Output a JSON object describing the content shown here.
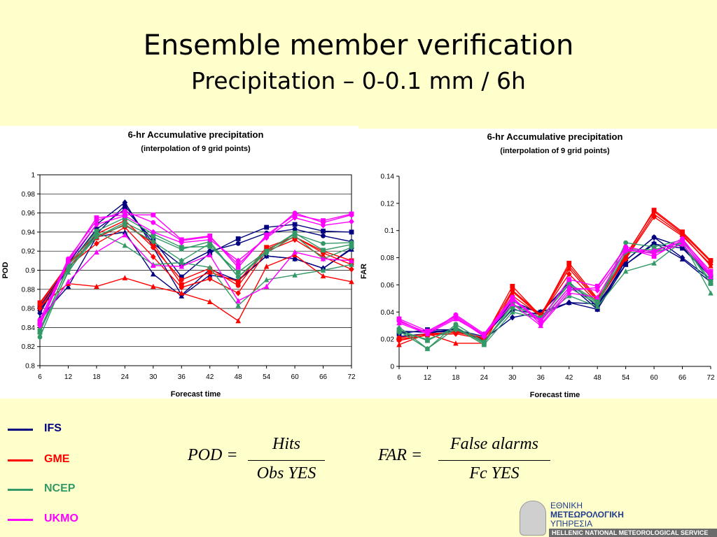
{
  "slide": {
    "title": "Ensemble member verification",
    "subtitle": "Precipitation – 0-0.1 mm / 6h"
  },
  "legend": [
    {
      "label": "IFS",
      "color": "#000080"
    },
    {
      "label": "GME",
      "color": "#ff0000"
    },
    {
      "label": "NCEP",
      "color": "#339966"
    },
    {
      "label": "UKMO",
      "color": "#ff00ff"
    }
  ],
  "formulas": {
    "pod": {
      "lhs": "POD =",
      "numerator": "Hits",
      "denominator": "Obs YES"
    },
    "far": {
      "lhs": "FAR =",
      "numerator": "False alarms",
      "denominator": "Fc YES"
    }
  },
  "logo": {
    "line1": "ΕΘΝΙΚΗ",
    "line2": "ΜΕΤΕΩΡΟΛΟΓΙΚΗ",
    "line3": "ΥΠΗΡΕΣΙΑ",
    "line4": "HELLENIC NATIONAL METEOROLOGICAL SERVICE"
  },
  "chart_data": [
    {
      "type": "line",
      "title": "6-hr Accumulative precipitation",
      "subtitle": "(interpolation of 9 grid points)",
      "xlabel": "Forecast time",
      "ylabel": "POD",
      "x": [
        6,
        12,
        18,
        24,
        30,
        36,
        42,
        48,
        54,
        60,
        66,
        72
      ],
      "ylim": [
        0.8,
        1.0
      ],
      "yticks": [
        "0.8",
        "0.82",
        "0.84",
        "0.86",
        "0.88",
        "0.9",
        "0.92",
        "0.94",
        "0.96",
        "0.98",
        "1"
      ],
      "grid": true,
      "series": [
        {
          "color": "#000080",
          "marker": "diamond",
          "values": [
            0.855,
            0.907,
            0.948,
            0.971,
            0.924,
            0.874,
            0.901,
            0.889,
            0.915,
            0.912,
            0.902,
            0.923
          ]
        },
        {
          "color": "#000080",
          "marker": "square",
          "values": [
            0.862,
            0.905,
            0.943,
            0.964,
            0.932,
            0.893,
            0.918,
            0.933,
            0.945,
            0.948,
            0.941,
            0.94
          ]
        },
        {
          "color": "#000080",
          "marker": "circle",
          "values": [
            0.858,
            0.902,
            0.938,
            0.968,
            0.928,
            0.905,
            0.92,
            0.928,
            0.939,
            0.943,
            0.936,
            0.93
          ]
        },
        {
          "color": "#000080",
          "marker": "triangle",
          "values": [
            0.85,
            0.883,
            0.935,
            0.94,
            0.896,
            0.873,
            0.895,
            0.89,
            0.915,
            0.912,
            0.902,
            0.922
          ]
        },
        {
          "color": "#ff0000",
          "marker": "triangle",
          "values": [
            0.862,
            0.886,
            0.883,
            0.892,
            0.883,
            0.876,
            0.867,
            0.847,
            0.904,
            0.916,
            0.894,
            0.888
          ]
        },
        {
          "color": "#ff0000",
          "marker": "square",
          "values": [
            0.866,
            0.906,
            0.934,
            0.948,
            0.928,
            0.885,
            0.898,
            0.888,
            0.924,
            0.935,
            0.92,
            0.91
          ]
        },
        {
          "color": "#ff0000",
          "marker": "diamond",
          "values": [
            0.86,
            0.904,
            0.928,
            0.945,
            0.914,
            0.882,
            0.891,
            0.876,
            0.92,
            0.932,
            0.914,
            0.901
          ]
        },
        {
          "color": "#ff0000",
          "marker": "circle",
          "values": [
            0.864,
            0.907,
            0.938,
            0.952,
            0.924,
            0.89,
            0.902,
            0.884,
            0.922,
            0.935,
            0.918,
            0.906
          ]
        },
        {
          "color": "#339966",
          "marker": "circle",
          "values": [
            0.83,
            0.9,
            0.935,
            0.95,
            0.935,
            0.922,
            0.93,
            0.893,
            0.92,
            0.938,
            0.928,
            0.929
          ]
        },
        {
          "color": "#339966",
          "marker": "triangle",
          "values": [
            0.836,
            0.898,
            0.94,
            0.926,
            0.906,
            0.908,
            0.903,
            0.863,
            0.89,
            0.895,
            0.9,
            0.906
          ]
        },
        {
          "color": "#339966",
          "marker": "square",
          "values": [
            0.835,
            0.905,
            0.941,
            0.955,
            0.938,
            0.924,
            0.925,
            0.898,
            0.92,
            0.939,
            0.921,
            0.927
          ]
        },
        {
          "color": "#339966",
          "marker": "diamond",
          "values": [
            0.838,
            0.903,
            0.936,
            0.947,
            0.93,
            0.91,
            0.928,
            0.893,
            0.918,
            0.936,
            0.912,
            0.924
          ]
        },
        {
          "color": "#ff00ff",
          "marker": "square",
          "values": [
            0.845,
            0.91,
            0.955,
            0.958,
            0.958,
            0.932,
            0.936,
            0.903,
            0.937,
            0.958,
            0.952,
            0.959
          ]
        },
        {
          "color": "#ff00ff",
          "marker": "circle",
          "values": [
            0.848,
            0.912,
            0.952,
            0.962,
            0.95,
            0.931,
            0.935,
            0.906,
            0.935,
            0.96,
            0.95,
            0.958
          ]
        },
        {
          "color": "#ff00ff",
          "marker": "diamond",
          "values": [
            0.842,
            0.909,
            0.948,
            0.957,
            0.94,
            0.929,
            0.932,
            0.91,
            0.934,
            0.955,
            0.947,
            0.951
          ]
        },
        {
          "color": "#ff00ff",
          "marker": "triangle",
          "values": [
            0.846,
            0.888,
            0.919,
            0.937,
            0.905,
            0.904,
            0.916,
            0.868,
            0.883,
            0.919,
            0.912,
            0.91
          ]
        }
      ]
    },
    {
      "type": "line",
      "title": "6-hr Accumulative precipitation",
      "subtitle": "(interpolation of 9 grid points)",
      "xlabel": "Forecast time",
      "ylabel": "FAR",
      "x": [
        6,
        12,
        18,
        24,
        30,
        36,
        42,
        48,
        54,
        60,
        66,
        72
      ],
      "ylim": [
        0,
        0.14
      ],
      "yticks": [
        "0",
        "0.02",
        "0.04",
        "0.06",
        "0.08",
        "0.1",
        "0.12",
        "0.14"
      ],
      "grid": false,
      "series": [
        {
          "color": "#000080",
          "marker": "diamond",
          "values": [
            0.025,
            0.026,
            0.026,
            0.02,
            0.036,
            0.04,
            0.047,
            0.042,
            0.078,
            0.095,
            0.08,
            0.064
          ]
        },
        {
          "color": "#000080",
          "marker": "square",
          "values": [
            0.024,
            0.027,
            0.027,
            0.022,
            0.045,
            0.04,
            0.06,
            0.042,
            0.075,
            0.09,
            0.087,
            0.066
          ]
        },
        {
          "color": "#000080",
          "marker": "circle",
          "values": [
            0.026,
            0.025,
            0.026,
            0.021,
            0.048,
            0.039,
            0.062,
            0.044,
            0.078,
            0.095,
            0.088,
            0.067
          ]
        },
        {
          "color": "#000080",
          "marker": "triangle",
          "values": [
            0.022,
            0.024,
            0.028,
            0.019,
            0.042,
            0.038,
            0.047,
            0.046,
            0.075,
            0.091,
            0.079,
            0.062
          ]
        },
        {
          "color": "#ff0000",
          "marker": "triangle",
          "values": [
            0.016,
            0.024,
            0.017,
            0.017,
            0.055,
            0.037,
            0.072,
            0.048,
            0.08,
            0.112,
            0.097,
            0.074
          ]
        },
        {
          "color": "#ff0000",
          "marker": "square",
          "values": [
            0.02,
            0.023,
            0.026,
            0.021,
            0.059,
            0.037,
            0.076,
            0.05,
            0.081,
            0.115,
            0.099,
            0.078
          ]
        },
        {
          "color": "#ff0000",
          "marker": "diamond",
          "values": [
            0.019,
            0.023,
            0.024,
            0.02,
            0.052,
            0.037,
            0.068,
            0.047,
            0.079,
            0.11,
            0.096,
            0.075
          ]
        },
        {
          "color": "#ff0000",
          "marker": "circle",
          "values": [
            0.021,
            0.024,
            0.025,
            0.021,
            0.056,
            0.038,
            0.074,
            0.049,
            0.082,
            0.114,
            0.098,
            0.077
          ]
        },
        {
          "color": "#339966",
          "marker": "circle",
          "values": [
            0.026,
            0.013,
            0.031,
            0.018,
            0.045,
            0.036,
            0.06,
            0.047,
            0.091,
            0.088,
            0.093,
            0.065
          ]
        },
        {
          "color": "#339966",
          "marker": "triangle",
          "values": [
            0.029,
            0.013,
            0.028,
            0.016,
            0.04,
            0.035,
            0.052,
            0.044,
            0.07,
            0.076,
            0.092,
            0.054
          ]
        },
        {
          "color": "#339966",
          "marker": "square",
          "values": [
            0.027,
            0.019,
            0.029,
            0.017,
            0.046,
            0.035,
            0.061,
            0.048,
            0.086,
            0.086,
            0.091,
            0.061
          ]
        },
        {
          "color": "#339966",
          "marker": "diamond",
          "values": [
            0.025,
            0.02,
            0.027,
            0.018,
            0.043,
            0.034,
            0.058,
            0.046,
            0.084,
            0.084,
            0.09,
            0.063
          ]
        },
        {
          "color": "#ff00ff",
          "marker": "square",
          "values": [
            0.035,
            0.026,
            0.037,
            0.023,
            0.05,
            0.034,
            0.064,
            0.059,
            0.087,
            0.081,
            0.093,
            0.07
          ]
        },
        {
          "color": "#ff00ff",
          "marker": "circle",
          "values": [
            0.034,
            0.024,
            0.038,
            0.024,
            0.051,
            0.031,
            0.056,
            0.058,
            0.088,
            0.084,
            0.094,
            0.068
          ]
        },
        {
          "color": "#ff00ff",
          "marker": "diamond",
          "values": [
            0.033,
            0.025,
            0.036,
            0.022,
            0.049,
            0.033,
            0.058,
            0.056,
            0.085,
            0.085,
            0.092,
            0.067
          ]
        },
        {
          "color": "#ff00ff",
          "marker": "triangle",
          "values": [
            0.032,
            0.024,
            0.035,
            0.023,
            0.046,
            0.03,
            0.054,
            0.051,
            0.086,
            0.083,
            0.09,
            0.066
          ]
        }
      ]
    }
  ]
}
